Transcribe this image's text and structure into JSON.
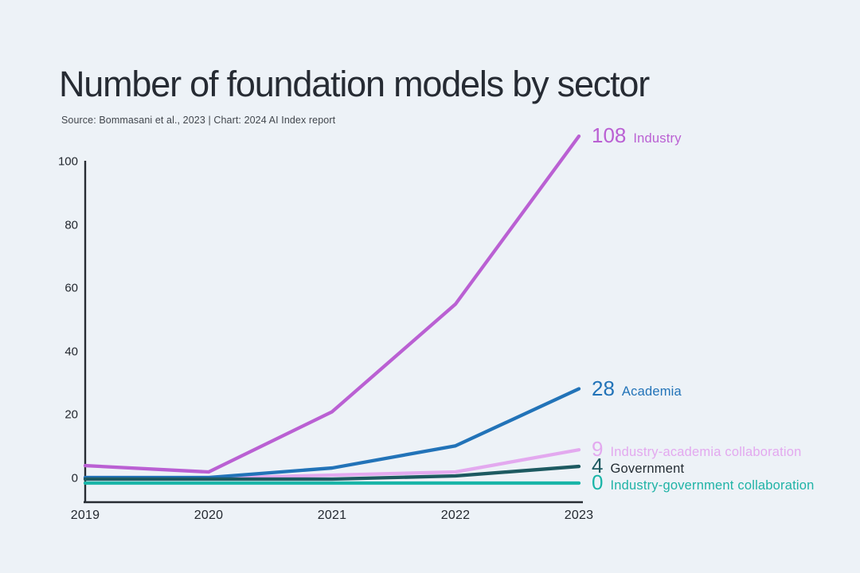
{
  "header": {
    "title": "Number of foundation models by sector",
    "source": "Source: Bommasani et al., 2023 | Chart: 2024 AI Index report"
  },
  "colors": {
    "background": "#edf2f7",
    "title_text": "#262b33",
    "source_text": "#41464d",
    "axis": "#272c33",
    "tick_text": "#23282f"
  },
  "chart_data": {
    "type": "line",
    "title": "Number of foundation models by sector",
    "x": [
      "2019",
      "2020",
      "2021",
      "2022",
      "2023"
    ],
    "xlabel": "",
    "ylabel": "",
    "ylim": [
      0,
      100
    ],
    "yticks": [
      0,
      20,
      40,
      60,
      80,
      100
    ],
    "grid": false,
    "legend_position": "end-of-line-labels",
    "series": [
      {
        "name": "Industry",
        "values": [
          4,
          2,
          21,
          55,
          108
        ],
        "end_value": "108",
        "color": "#ba60d3",
        "name_color": "#ba60d3"
      },
      {
        "name": "Academia",
        "values": [
          0,
          0,
          3,
          10,
          28
        ],
        "end_value": "28",
        "color": "#2273b8",
        "name_color": "#2273b8"
      },
      {
        "name": "Industry-academia collaboration",
        "values": [
          0,
          0,
          1,
          2,
          9
        ],
        "end_value": "9",
        "color": "#e3a9ef",
        "name_color": "#e3a9ef"
      },
      {
        "name": "Government",
        "values": [
          0,
          0,
          0,
          1,
          4
        ],
        "end_value": "4",
        "color": "#1d5a61",
        "name_color": "#242d34"
      },
      {
        "name": "Industry-government collaboration",
        "values": [
          0,
          0,
          0,
          0,
          0
        ],
        "end_value": "0",
        "color": "#1ab5a8",
        "name_color": "#1fb3a6"
      }
    ]
  }
}
